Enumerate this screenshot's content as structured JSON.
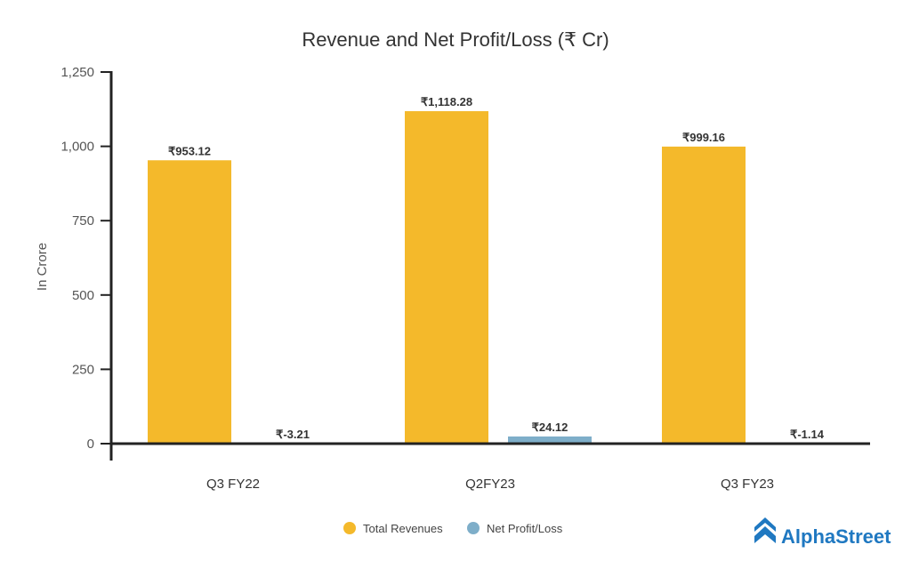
{
  "chart_data": {
    "type": "bar",
    "title": "Revenue and Net Profit/Loss (₹ Cr)",
    "xlabel": "",
    "ylabel": "In Crore",
    "ylim": [
      0,
      1250
    ],
    "yticks": [
      0,
      250,
      500,
      750,
      1000,
      1250
    ],
    "ytick_labels": [
      "0",
      "250",
      "500",
      "750",
      "1,000",
      "1,250"
    ],
    "categories": [
      "Q3 FY22",
      "Q2FY23",
      "Q3 FY23"
    ],
    "series": [
      {
        "name": "Total Revenues",
        "color": "#f4b92b",
        "values": [
          953.12,
          1118.28,
          999.16
        ],
        "labels": [
          "₹953.12",
          "₹1,118.28",
          "₹999.16"
        ]
      },
      {
        "name": "Net Profit/Loss",
        "color": "#7eaec9",
        "values": [
          -3.21,
          24.12,
          -1.14
        ],
        "labels": [
          "₹-3.21",
          "₹24.12",
          "₹-1.14"
        ]
      }
    ],
    "grid": false,
    "legend": "bottom-center"
  },
  "brand": {
    "name": "AlphaStreet",
    "color": "#1f78c1"
  }
}
